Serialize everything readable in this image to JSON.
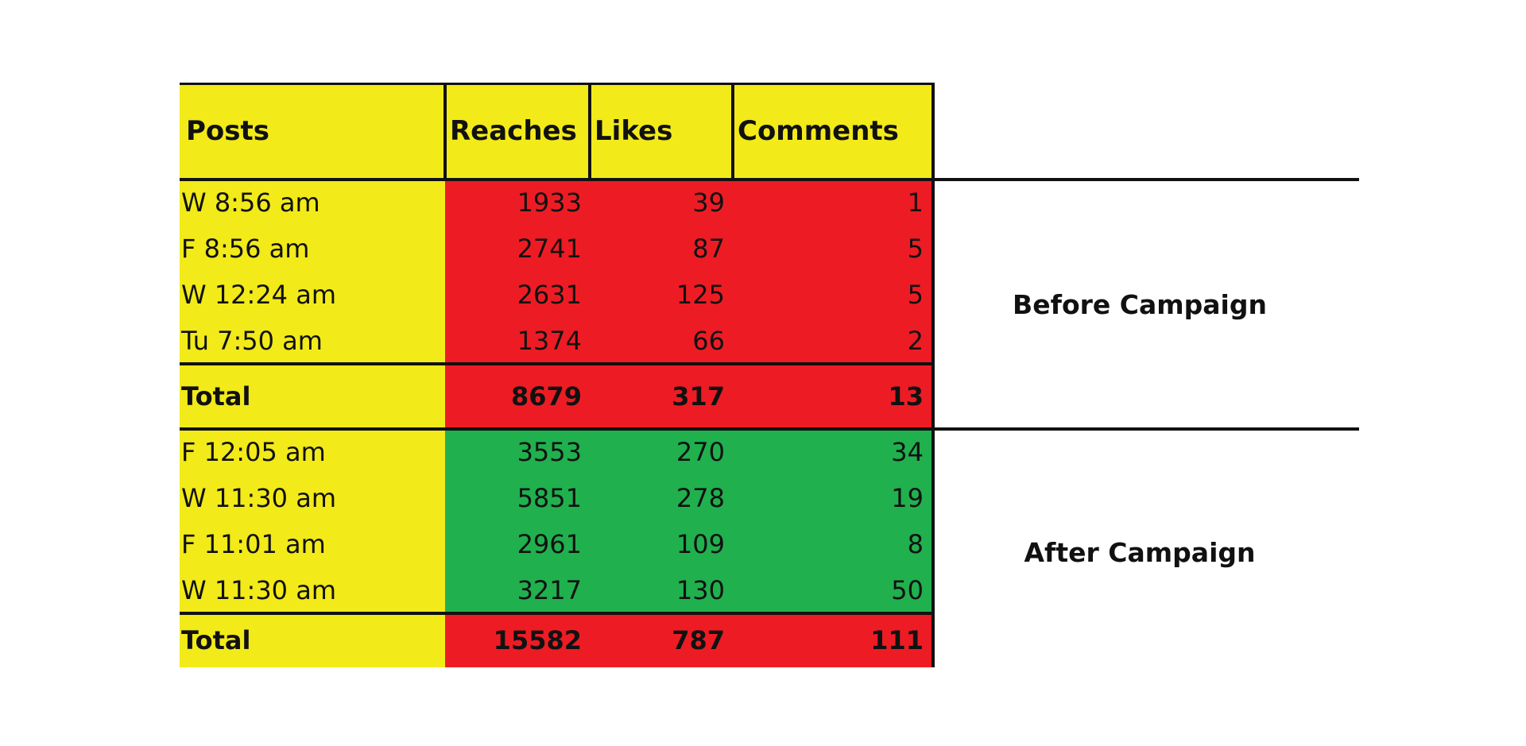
{
  "colors": {
    "header": "#f2ea19",
    "before_fill": "#ed1c24",
    "after_fill": "#20b04e",
    "total_fill": "#ed1c24"
  },
  "header": [
    "Posts",
    "Reaches",
    "Likes",
    "Comments"
  ],
  "before": {
    "label": "Before Campaign",
    "rows": [
      {
        "post": "W 8:56 am",
        "reaches": "1933",
        "likes": "39",
        "comments": "1"
      },
      {
        "post": "F 8:56 am",
        "reaches": "2741",
        "likes": "87",
        "comments": "5"
      },
      {
        "post": "W 12:24 am",
        "reaches": "2631",
        "likes": "125",
        "comments": "5"
      },
      {
        "post": "Tu 7:50 am",
        "reaches": "1374",
        "likes": "66",
        "comments": "2"
      }
    ],
    "total": {
      "label": "Total",
      "reaches": "8679",
      "likes": "317",
      "comments": "13"
    }
  },
  "after": {
    "label": "After Campaign",
    "rows": [
      {
        "post": "F 12:05 am",
        "reaches": "3553",
        "likes": "270",
        "comments": "34"
      },
      {
        "post": "W 11:30 am",
        "reaches": "5851",
        "likes": "278",
        "comments": "19"
      },
      {
        "post": "F 11:01 am",
        "reaches": "2961",
        "likes": "109",
        "comments": "8"
      },
      {
        "post": "W 11:30 am",
        "reaches": "3217",
        "likes": "130",
        "comments": "50"
      }
    ],
    "total": {
      "label": "Total",
      "reaches": "15582",
      "likes": "787",
      "comments": "111"
    }
  }
}
